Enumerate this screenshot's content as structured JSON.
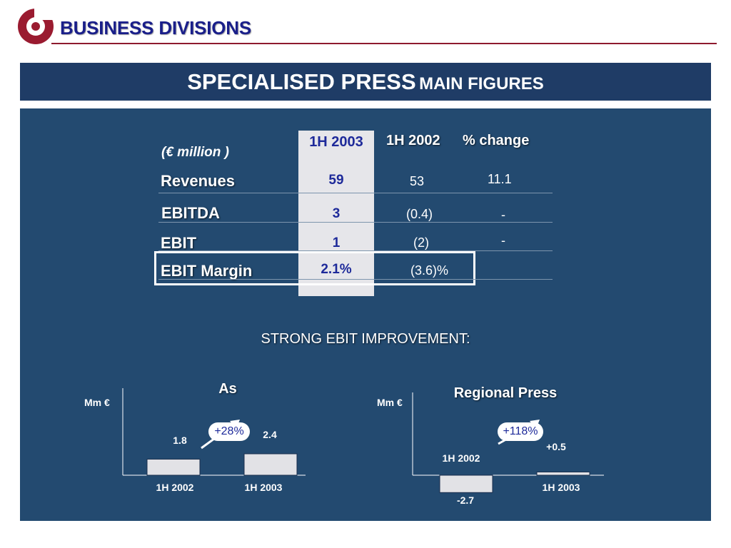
{
  "header": {
    "title": "BUSINESS DIVISIONS"
  },
  "slide": {
    "title_main": "SPECIALISED PRESS",
    "title_sub": "MAIN FIGURES"
  },
  "table": {
    "unit": "(€ million )",
    "columns": [
      "1H 2003",
      "1H 2002",
      "% change"
    ],
    "rows": [
      {
        "label": "Revenues",
        "h2003": "59",
        "h2002": "53",
        "change": "11.1"
      },
      {
        "label": "EBITDA",
        "h2003": "3",
        "h2002": "(0.4)",
        "change": "-"
      },
      {
        "label": "EBIT",
        "h2003": "1",
        "h2002": "(2)",
        "change": "-"
      },
      {
        "label": "EBIT Margin",
        "h2003": "2.1%",
        "h2002": "(3.6)%",
        "change": ""
      }
    ]
  },
  "section": {
    "title": "STRONG EBIT IMPROVEMENT:"
  },
  "chart_data": [
    {
      "type": "bar",
      "title": "As",
      "ylabel": "Mm €",
      "categories": [
        "1H 2002",
        "1H 2003"
      ],
      "values": [
        1.8,
        2.4
      ],
      "value_labels": [
        "1.8",
        "2.4"
      ],
      "annotation": "+28%",
      "ylim": [
        -3,
        3
      ]
    },
    {
      "type": "bar",
      "title": "Regional Press",
      "ylabel": "Mm €",
      "categories": [
        "1H 2002",
        "1H 2003"
      ],
      "values": [
        -2.7,
        0.5
      ],
      "value_labels": [
        "-2.7",
        "+0.5"
      ],
      "annotation": "+118%",
      "ylim": [
        -3,
        3
      ]
    }
  ],
  "colors": {
    "panel": "#234a70",
    "title_bar": "#1f3c66",
    "accent": "#8e1a2e",
    "highlight_text": "#1e2a9a"
  }
}
